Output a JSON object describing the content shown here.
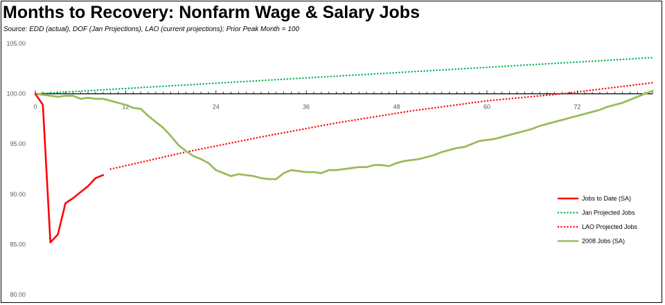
{
  "header": {
    "title": "Months to Recovery:  Nonfarm Wage & Salary Jobs",
    "subtitle": "Source:  EDD (actual), DOF (Jan Projections), LAO (current projections);  Prior Peak Month = 100"
  },
  "chart_data": {
    "type": "line",
    "title": "Months to Recovery:  Nonfarm Wage & Salary Jobs",
    "subtitle": "Source:  EDD (actual), DOF (Jan Projections), LAO (current projections);  Prior Peak Month = 100",
    "xlabel": "",
    "ylabel": "",
    "xlim": [
      0,
      82
    ],
    "ylim": [
      80,
      105
    ],
    "x_ticks": [
      "0",
      "12",
      "24",
      "36",
      "48",
      "60",
      "72"
    ],
    "y_ticks": [
      "80.00",
      "85.00",
      "90.00",
      "95.00",
      "100.00",
      "105.00"
    ],
    "grid": false,
    "legend_position": "bottom-right",
    "series": [
      {
        "name": "Jobs to Date (SA)",
        "color": "#ff0000",
        "style": "solid",
        "x": [
          0,
          1,
          2,
          3,
          4,
          5,
          6,
          7,
          8,
          9
        ],
        "y": [
          100,
          98.9,
          85.2,
          86.0,
          89.1,
          89.6,
          90.2,
          90.8,
          91.6,
          91.9
        ]
      },
      {
        "name": "Jan Projected Jobs",
        "color": "#00b050",
        "style": "dotted",
        "x": [
          0,
          82
        ],
        "y": [
          100,
          103.6
        ]
      },
      {
        "name": "LAO Projected Jobs",
        "color": "#ff0000",
        "style": "dotted",
        "x": [
          10,
          20,
          30,
          40,
          50,
          60,
          70,
          82
        ],
        "y": [
          92.5,
          94.2,
          95.7,
          97.1,
          98.3,
          99.3,
          100.0,
          101.1
        ]
      },
      {
        "name": "2008 Jobs (SA)",
        "color": "#9bbb59",
        "style": "solid",
        "x": [
          0,
          1,
          2,
          3,
          4,
          5,
          6,
          7,
          8,
          9,
          10,
          11,
          12,
          13,
          14,
          15,
          16,
          17,
          18,
          19,
          20,
          21,
          22,
          23,
          24,
          25,
          26,
          27,
          28,
          29,
          30,
          31,
          32,
          33,
          34,
          35,
          36,
          37,
          38,
          39,
          40,
          41,
          42,
          43,
          44,
          45,
          46,
          47,
          48,
          49,
          50,
          51,
          52,
          53,
          54,
          55,
          56,
          57,
          58,
          59,
          60,
          61,
          62,
          63,
          64,
          65,
          66,
          67,
          68,
          69,
          70,
          71,
          72,
          73,
          74,
          75,
          76,
          77,
          78,
          79,
          80,
          81,
          82
        ],
        "y": [
          100.0,
          99.9,
          99.8,
          99.7,
          99.8,
          99.8,
          99.5,
          99.6,
          99.5,
          99.5,
          99.3,
          99.1,
          98.9,
          98.6,
          98.5,
          97.8,
          97.2,
          96.6,
          95.8,
          94.9,
          94.3,
          93.8,
          93.5,
          93.1,
          92.4,
          92.1,
          91.8,
          92.0,
          91.9,
          91.8,
          91.6,
          91.5,
          91.5,
          92.1,
          92.4,
          92.3,
          92.2,
          92.2,
          92.1,
          92.4,
          92.4,
          92.5,
          92.6,
          92.7,
          92.7,
          92.9,
          92.9,
          92.8,
          93.1,
          93.3,
          93.4,
          93.5,
          93.7,
          93.9,
          94.2,
          94.4,
          94.6,
          94.7,
          95.0,
          95.3,
          95.4,
          95.5,
          95.7,
          95.9,
          96.1,
          96.3,
          96.5,
          96.8,
          97.0,
          97.2,
          97.4,
          97.6,
          97.8,
          98.0,
          98.2,
          98.4,
          98.7,
          98.9,
          99.1,
          99.4,
          99.7,
          100.0,
          100.3
        ]
      }
    ]
  }
}
